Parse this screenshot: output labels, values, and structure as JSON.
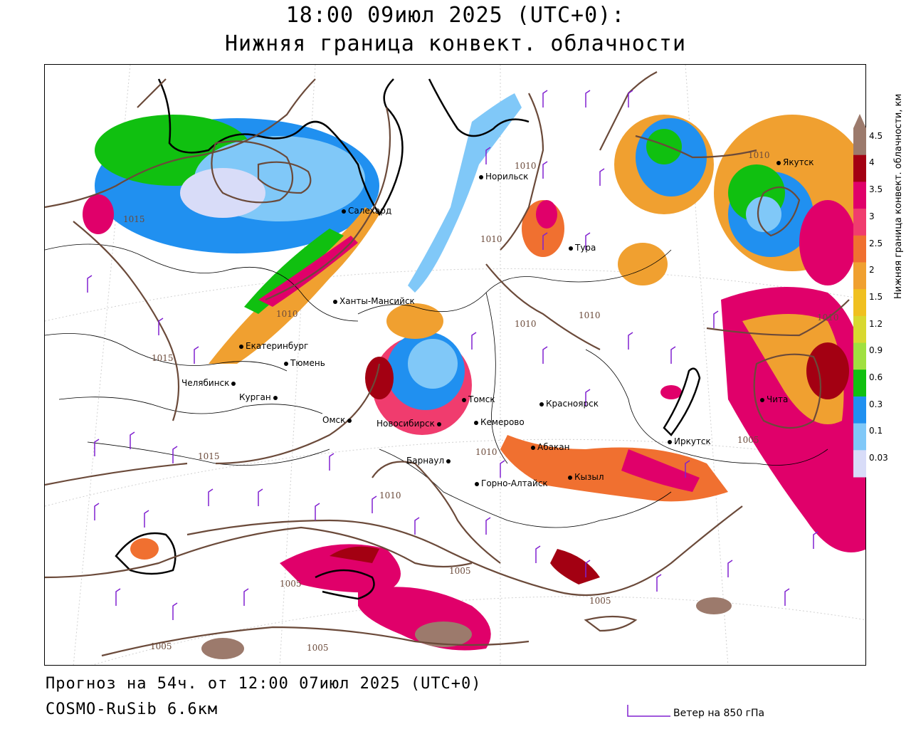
{
  "header": {
    "title": "18:00 09июл 2025 (UTC+0):",
    "subtitle": "Нижняя граница конвект. облачности"
  },
  "footer": {
    "forecast": "Прогноз на 54ч. от 12:00 07июл 2025 (UTC+0)",
    "model": "COSMO-RuSib 6.6км",
    "wind_label": "Ветер на 850 гПа"
  },
  "legend": {
    "title": "Нижняя граница конвект. облачности, км",
    "ticks": [
      "4.5",
      "4",
      "3.5",
      "3",
      "2.5",
      "2",
      "1.5",
      "1.2",
      "0.9",
      "0.6",
      "0.3",
      "0.1",
      "0.03"
    ],
    "colors": [
      "#9c7a6c",
      "#a30012",
      "#e0006a",
      "#f03c6e",
      "#f07030",
      "#f0a030",
      "#f0c020",
      "#d8d830",
      "#a0e040",
      "#10c010",
      "#2090f0",
      "#80c8f8",
      "#d8dcf8"
    ]
  },
  "cities": [
    {
      "name": "Салехард",
      "kind": "city"
    },
    {
      "name": "Норильск",
      "kind": "city"
    },
    {
      "name": "Тура",
      "kind": "city"
    },
    {
      "name": "Якутск",
      "kind": "city"
    },
    {
      "name": "Ханты-Мансийск",
      "kind": "city"
    },
    {
      "name": "Екатеринбург",
      "kind": "city"
    },
    {
      "name": "Тюмень",
      "kind": "city"
    },
    {
      "name": "Челябинск",
      "kind": "city"
    },
    {
      "name": "Курган",
      "kind": "city"
    },
    {
      "name": "Омск",
      "kind": "city"
    },
    {
      "name": "Новосибирск",
      "kind": "city"
    },
    {
      "name": "Томск",
      "kind": "city"
    },
    {
      "name": "Кемерово",
      "kind": "city"
    },
    {
      "name": "Красноярск",
      "kind": "city"
    },
    {
      "name": "Абакан",
      "kind": "city"
    },
    {
      "name": "Барнаул",
      "kind": "city"
    },
    {
      "name": "Горно-Алтайск",
      "kind": "city"
    },
    {
      "name": "Кызыл",
      "kind": "city"
    },
    {
      "name": "Иркутск",
      "kind": "city"
    },
    {
      "name": "Чита",
      "kind": "city"
    }
  ],
  "isobars": [
    "1015",
    "1010",
    "1005",
    "1010",
    "1010",
    "1015",
    "1015",
    "1010",
    "1010",
    "1010",
    "1010",
    "1005",
    "1005",
    "1005",
    "1005",
    "1005",
    "1010",
    "1010",
    "1005"
  ],
  "colors": {
    "isobar": "#6b4a3a",
    "wind_barb": "#8020d0",
    "border": "#000000"
  }
}
